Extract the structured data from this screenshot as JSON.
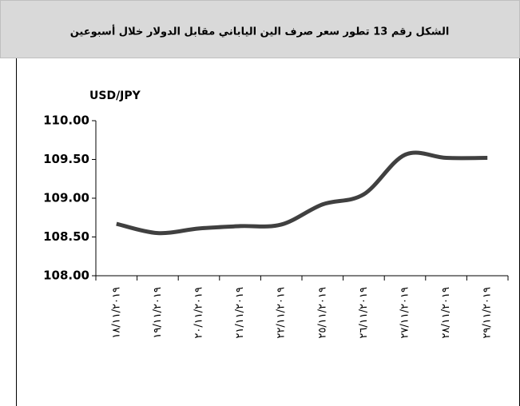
{
  "chart_data": {
    "type": "line",
    "title": "الشكل رقم 13 تطور سعر صرف الين الياباني مقابل الدولار خلال أسبوعين",
    "y_label": "USD/JPY",
    "categories": [
      "١٨/١١/٢٠١٩",
      "١٩/١١/٢٠١٩",
      "٢٠/١١/٢٠١٩",
      "٢١/١١/٢٠١٩",
      "٢٢/١١/٢٠١٩",
      "٢٥/١١/٢٠١٩",
      "٢٦/١١/٢٠١٩",
      "٢٧/١١/٢٠١٩",
      "٢٨/١١/٢٠١٩",
      "٢٩/١١/٢٠١٩"
    ],
    "series": [
      {
        "name": "USD/JPY",
        "color": "#404040",
        "values": [
          108.67,
          108.55,
          108.61,
          108.64,
          108.66,
          108.92,
          109.05,
          109.56,
          109.52,
          109.52
        ]
      }
    ],
    "ylim": [
      108,
      110
    ],
    "yticks": [
      {
        "value": 108,
        "label": "108.00"
      },
      {
        "value": 108.5,
        "label": "108.50"
      },
      {
        "value": 109,
        "label": "109.00"
      },
      {
        "value": 109.5,
        "label": "109.50"
      },
      {
        "value": 110,
        "label": "110.00"
      }
    ],
    "grid": false
  }
}
